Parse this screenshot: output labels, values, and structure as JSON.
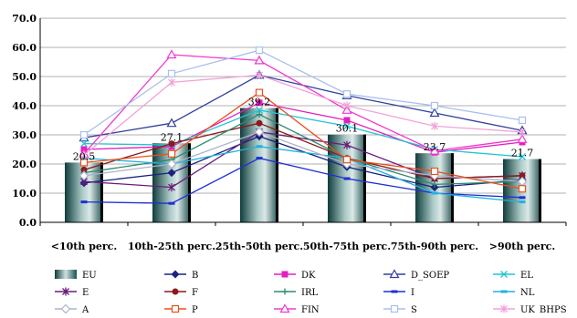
{
  "chart_data": {
    "type": "bar",
    "title": "",
    "xlabel": "",
    "ylabel": "",
    "ylim": [
      0,
      70
    ],
    "yticks": [
      "0.0",
      "10.0",
      "20.0",
      "30.0",
      "40.0",
      "50.0",
      "60.0",
      "70.0"
    ],
    "grid": true,
    "legend_placement": "bottom",
    "categories": [
      "<10th perc.",
      "10th-25th perc.",
      "25th-50th perc.",
      "50th-75th perc.",
      "75th-90th perc.",
      ">90th perc."
    ],
    "bar_series": {
      "name": "EU",
      "values": [
        20.5,
        27.1,
        39.2,
        30.1,
        23.7,
        21.7
      ],
      "labels": [
        "20.5",
        "27.1",
        "39.2",
        "30.1",
        "23.7",
        "21.7"
      ]
    },
    "series": [
      {
        "name": "B",
        "color": "#1a237e",
        "marker": "diamond",
        "values": [
          13.5,
          17,
          29.5,
          19,
          12,
          14.5
        ]
      },
      {
        "name": "DK",
        "color": "#e61ebe",
        "marker": "square",
        "values": [
          25,
          26,
          41,
          35,
          24,
          27.5
        ]
      },
      {
        "name": "D_SOEP",
        "color": "#303f9f",
        "marker": "triangle",
        "values": [
          29,
          34,
          50.5,
          43.5,
          37.5,
          31.5
        ]
      },
      {
        "name": "EL",
        "color": "#22c4d4",
        "marker": "x",
        "values": [
          27,
          26.5,
          38.5,
          33,
          25,
          22.5
        ]
      },
      {
        "name": "E",
        "color": "#6a1b7a",
        "marker": "star",
        "values": [
          14,
          12,
          31,
          26.5,
          15,
          16
        ]
      },
      {
        "name": "F",
        "color": "#8b1a1a",
        "marker": "circle",
        "values": [
          18,
          27,
          34,
          22,
          15,
          16
        ]
      },
      {
        "name": "IRL",
        "color": "#2e8b6e",
        "marker": "plus",
        "values": [
          17,
          21.5,
          37,
          22,
          13,
          14
        ]
      },
      {
        "name": "I",
        "color": "#1f2fd6",
        "marker": "dash",
        "values": [
          7,
          6.5,
          22,
          15,
          10,
          8.5
        ]
      },
      {
        "name": "NL",
        "color": "#20b2e0",
        "marker": "dash",
        "values": [
          22,
          20,
          26,
          22,
          10,
          7
        ]
      },
      {
        "name": "A",
        "color": "#aab4c8",
        "marker": "diamond-open",
        "values": [
          16,
          20,
          31,
          20,
          16,
          14
        ]
      },
      {
        "name": "P",
        "color": "#e8501e",
        "marker": "square-open",
        "values": [
          20.5,
          23.5,
          44.5,
          21.5,
          17.5,
          11.5
        ]
      },
      {
        "name": "FIN",
        "color": "#f038d0",
        "marker": "triangle-open",
        "values": [
          23.5,
          57.5,
          55.5,
          38.5,
          24.5,
          28.5
        ]
      },
      {
        "name": "S",
        "color": "#a8c0ec",
        "marker": "square-open",
        "values": [
          30,
          51,
          59,
          44,
          40,
          35
        ]
      },
      {
        "name": "UK_BHPS",
        "color": "#f2a2d8",
        "marker": "asterisk",
        "values": [
          23,
          48,
          50.5,
          40,
          33,
          31
        ]
      }
    ]
  }
}
